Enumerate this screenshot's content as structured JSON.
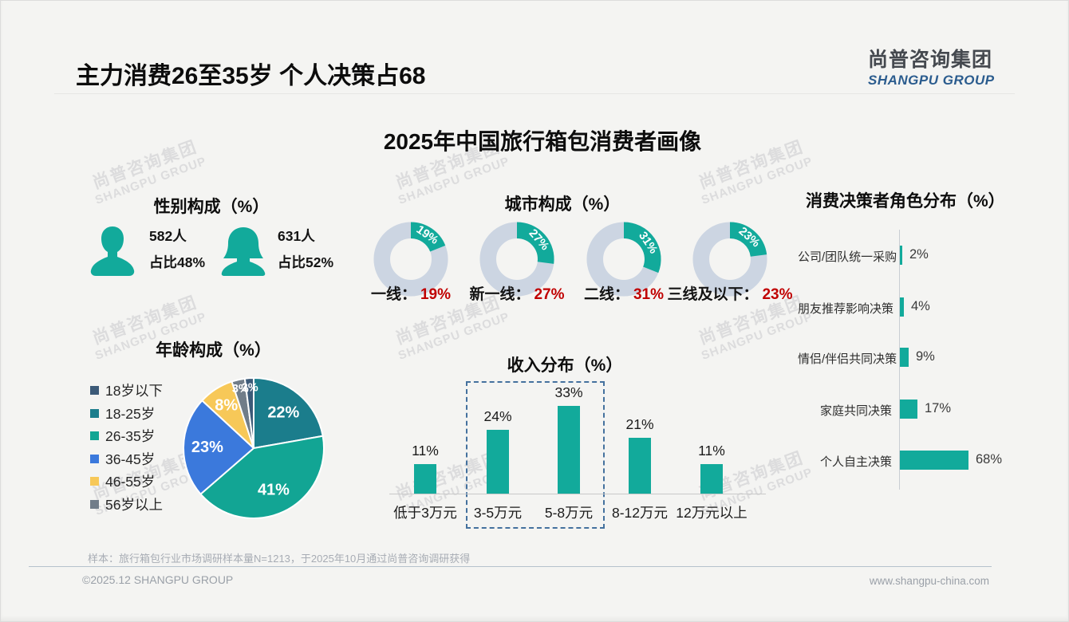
{
  "header": {
    "title": "主力消费26至35岁 个人决策占68",
    "logo_cn": "尚普咨询集团",
    "logo_en": "SHANGPU GROUP"
  },
  "main_title": "2025年中国旅行箱包消费者画像",
  "watermark": {
    "cn": "尚普咨询集团",
    "en": "SHANGPU GROUP"
  },
  "colors": {
    "teal": "#12aa9b",
    "donut_track": "#ccd5e2",
    "red": "#c00000",
    "dash_box": "#44719e",
    "axis": "#c9cdd3"
  },
  "chart_data": [
    {
      "id": "gender",
      "type": "pictogram",
      "title": "性别构成（%）",
      "items": [
        {
          "gender": "male",
          "count": "582人",
          "share": "占比48%"
        },
        {
          "gender": "female",
          "count": "631人",
          "share": "占比52%"
        }
      ]
    },
    {
      "id": "city",
      "type": "pie",
      "title": "城市构成（%）",
      "style": "donut",
      "items": [
        {
          "label": "一线：",
          "value": 19,
          "display": "19%"
        },
        {
          "label": "新一线：",
          "value": 27,
          "display": "27%"
        },
        {
          "label": "二线：",
          "value": 31,
          "display": "31%"
        },
        {
          "label": "三线及以下：",
          "value": 23,
          "display": "23%"
        }
      ]
    },
    {
      "id": "age",
      "type": "pie",
      "title": "年龄构成（%）",
      "legend": [
        {
          "label": "18岁以下",
          "color": "#3c5a78"
        },
        {
          "label": "18-25岁",
          "color": "#1b7d8c"
        },
        {
          "label": "26-35岁",
          "color": "#12a594"
        },
        {
          "label": "36-45岁",
          "color": "#3b79dc"
        },
        {
          "label": "46-55岁",
          "color": "#f7c858"
        },
        {
          "label": "56岁以上",
          "color": "#717d89"
        }
      ],
      "slices": [
        {
          "label": "18-25岁",
          "value": 22,
          "color": "#1b7d8c"
        },
        {
          "label": "26-35岁",
          "value": 41,
          "color": "#12a594"
        },
        {
          "label": "36-45岁",
          "value": 23,
          "color": "#3b79dc"
        },
        {
          "label": "46-55岁",
          "value": 8,
          "color": "#f7c858"
        },
        {
          "label": "56岁以上",
          "value": 3,
          "color": "#717d89"
        },
        {
          "label": "18岁以下",
          "value": 2,
          "color": "#3c5a78"
        }
      ]
    },
    {
      "id": "income",
      "type": "bar",
      "title": "收入分布（%）",
      "categories": [
        "低于3万元",
        "3-5万元",
        "5-8万元",
        "8-12万元",
        "12万元以上"
      ],
      "values": [
        11,
        24,
        33,
        21,
        11
      ],
      "highlight": {
        "categories": [
          "3-5万元",
          "5-8万元"
        ]
      }
    },
    {
      "id": "decision",
      "type": "hbar",
      "title": "消费决策者角色分布（%）",
      "categories": [
        "公司/团队统一采购",
        "朋友推荐影响决策",
        "情侣/伴侣共同决策",
        "家庭共同决策",
        "个人自主决策"
      ],
      "values": [
        2,
        4,
        9,
        17,
        68
      ]
    }
  ],
  "footer": {
    "note": "样本：旅行箱包行业市场调研样本量N=1213，于2025年10月通过尚普咨询调研获得",
    "copyright": "©2025.12 SHANGPU GROUP",
    "website": "www.shangpu-china.com"
  }
}
